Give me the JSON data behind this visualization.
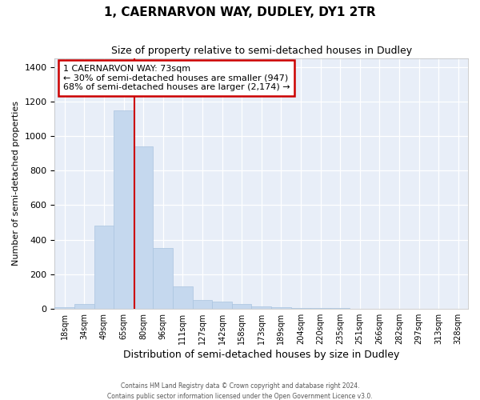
{
  "title": "1, CAERNARVON WAY, DUDLEY, DY1 2TR",
  "subtitle": "Size of property relative to semi-detached houses in Dudley",
  "xlabel": "Distribution of semi-detached houses by size in Dudley",
  "ylabel": "Number of semi-detached properties",
  "footer_line1": "Contains HM Land Registry data © Crown copyright and database right 2024.",
  "footer_line2": "Contains public sector information licensed under the Open Government Licence v3.0.",
  "annotation_title": "1 CAERNARVON WAY: 73sqm",
  "annotation_line1": "← 30% of semi-detached houses are smaller (947)",
  "annotation_line2": "68% of semi-detached houses are larger (2,174) →",
  "vline_color": "#cc0000",
  "annotation_box_color": "#cc0000",
  "bar_color": "#c5d8ee",
  "bar_edge_color": "#aac4e0",
  "background_color": "#e8eef8",
  "categories": [
    "18sqm",
    "34sqm",
    "49sqm",
    "65sqm",
    "80sqm",
    "96sqm",
    "111sqm",
    "127sqm",
    "142sqm",
    "158sqm",
    "173sqm",
    "189sqm",
    "204sqm",
    "220sqm",
    "235sqm",
    "251sqm",
    "266sqm",
    "282sqm",
    "297sqm",
    "313sqm",
    "328sqm"
  ],
  "values": [
    8,
    28,
    480,
    1150,
    940,
    352,
    130,
    50,
    40,
    26,
    15,
    10,
    5,
    3,
    2,
    1,
    1,
    1,
    1,
    0,
    0
  ],
  "bin_width": 15.5,
  "xlim_left": 10,
  "xlim_right": 336,
  "ylim": [
    0,
    1450
  ],
  "yticks": [
    0,
    200,
    400,
    600,
    800,
    1000,
    1200,
    1400
  ],
  "vline_x": 73
}
